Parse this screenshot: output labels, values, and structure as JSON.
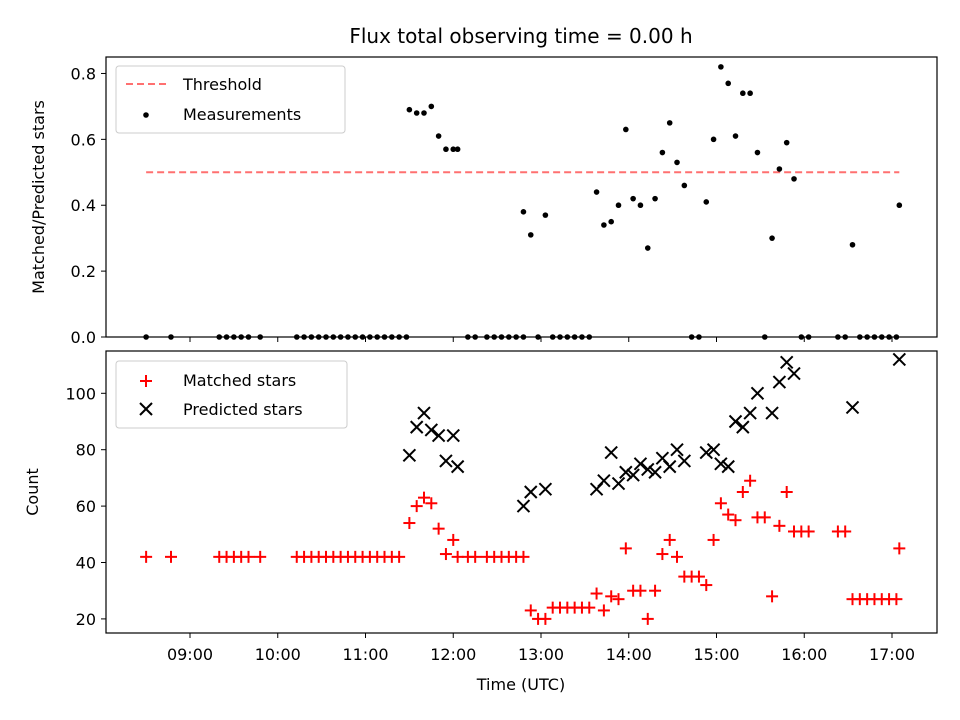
{
  "chart_data": {
    "type": "scatter",
    "title": "Flux total observing time = 0.00 h",
    "xlabel": "Time (UTC)",
    "x_ticks": [
      "09:00",
      "10:00",
      "11:00",
      "12:00",
      "13:00",
      "14:00",
      "15:00",
      "16:00",
      "17:00"
    ],
    "top_panel": {
      "ylabel": "Matched/Predicted stars",
      "ylim": [
        0,
        0.85
      ],
      "y_ticks": [
        "0.0",
        "0.2",
        "0.4",
        "0.6",
        "0.8"
      ],
      "legend": {
        "position": "top-left",
        "entries": [
          "Threshold",
          "Measurements"
        ]
      },
      "threshold": {
        "name": "Threshold",
        "value": 0.5,
        "x_start": "08:30",
        "x_end": "17:05",
        "color": "#ff7070",
        "style": "dashed"
      },
      "measurements": {
        "name": "Measurements",
        "color": "#000000",
        "points": [
          [
            "08:30",
            0.0
          ],
          [
            "08:47",
            0.0
          ],
          [
            "09:20",
            0.0
          ],
          [
            "09:25",
            0.0
          ],
          [
            "09:30",
            0.0
          ],
          [
            "09:35",
            0.0
          ],
          [
            "09:40",
            0.0
          ],
          [
            "09:48",
            0.0
          ],
          [
            "10:13",
            0.0
          ],
          [
            "10:18",
            0.0
          ],
          [
            "10:23",
            0.0
          ],
          [
            "10:28",
            0.0
          ],
          [
            "10:33",
            0.0
          ],
          [
            "10:38",
            0.0
          ],
          [
            "10:43",
            0.0
          ],
          [
            "10:48",
            0.0
          ],
          [
            "10:53",
            0.0
          ],
          [
            "10:58",
            0.0
          ],
          [
            "11:03",
            0.0
          ],
          [
            "11:08",
            0.0
          ],
          [
            "11:13",
            0.0
          ],
          [
            "11:18",
            0.0
          ],
          [
            "11:23",
            0.0
          ],
          [
            "11:28",
            0.0
          ],
          [
            "11:30",
            0.69
          ],
          [
            "11:35",
            0.68
          ],
          [
            "11:40",
            0.68
          ],
          [
            "11:45",
            0.7
          ],
          [
            "11:50",
            0.61
          ],
          [
            "11:55",
            0.57
          ],
          [
            "12:00",
            0.57
          ],
          [
            "12:03",
            0.57
          ],
          [
            "12:10",
            0.0
          ],
          [
            "12:15",
            0.0
          ],
          [
            "12:23",
            0.0
          ],
          [
            "12:28",
            0.0
          ],
          [
            "12:33",
            0.0
          ],
          [
            "12:38",
            0.0
          ],
          [
            "12:43",
            0.0
          ],
          [
            "12:48",
            0.0
          ],
          [
            "12:48",
            0.38
          ],
          [
            "12:53",
            0.31
          ],
          [
            "12:58",
            0.0
          ],
          [
            "13:03",
            0.37
          ],
          [
            "13:08",
            0.0
          ],
          [
            "13:13",
            0.0
          ],
          [
            "13:18",
            0.0
          ],
          [
            "13:23",
            0.0
          ],
          [
            "13:28",
            0.0
          ],
          [
            "13:33",
            0.0
          ],
          [
            "13:38",
            0.44
          ],
          [
            "13:43",
            0.34
          ],
          [
            "13:48",
            0.35
          ],
          [
            "13:53",
            0.4
          ],
          [
            "13:58",
            0.63
          ],
          [
            "14:03",
            0.42
          ],
          [
            "14:08",
            0.4
          ],
          [
            "14:13",
            0.27
          ],
          [
            "14:18",
            0.42
          ],
          [
            "14:23",
            0.56
          ],
          [
            "14:28",
            0.65
          ],
          [
            "14:33",
            0.53
          ],
          [
            "14:38",
            0.46
          ],
          [
            "14:43",
            0.0
          ],
          [
            "14:48",
            0.0
          ],
          [
            "14:53",
            0.41
          ],
          [
            "14:58",
            0.6
          ],
          [
            "15:03",
            0.82
          ],
          [
            "15:08",
            0.77
          ],
          [
            "15:13",
            0.61
          ],
          [
            "15:18",
            0.74
          ],
          [
            "15:23",
            0.74
          ],
          [
            "15:28",
            0.56
          ],
          [
            "15:33",
            0.0
          ],
          [
            "15:38",
            0.3
          ],
          [
            "15:43",
            0.51
          ],
          [
            "15:48",
            0.59
          ],
          [
            "15:53",
            0.48
          ],
          [
            "15:58",
            0.0
          ],
          [
            "16:03",
            0.0
          ],
          [
            "16:23",
            0.0
          ],
          [
            "16:28",
            0.0
          ],
          [
            "16:33",
            0.28
          ],
          [
            "16:38",
            0.0
          ],
          [
            "16:43",
            0.0
          ],
          [
            "16:48",
            0.0
          ],
          [
            "16:53",
            0.0
          ],
          [
            "16:58",
            0.0
          ],
          [
            "17:03",
            0.0
          ],
          [
            "17:05",
            0.4
          ]
        ]
      }
    },
    "bottom_panel": {
      "ylabel": "Count",
      "ylim": [
        15,
        115
      ],
      "y_ticks": [
        "20",
        "40",
        "60",
        "80",
        "100"
      ],
      "legend": {
        "position": "top-left",
        "entries": [
          "Matched stars",
          "Predicted stars"
        ]
      },
      "series": [
        {
          "name": "Matched stars",
          "marker": "+",
          "color": "#ff0000",
          "points": [
            [
              "08:30",
              42
            ],
            [
              "08:47",
              42
            ],
            [
              "09:20",
              42
            ],
            [
              "09:25",
              42
            ],
            [
              "09:30",
              42
            ],
            [
              "09:35",
              42
            ],
            [
              "09:40",
              42
            ],
            [
              "09:48",
              42
            ],
            [
              "10:13",
              42
            ],
            [
              "10:18",
              42
            ],
            [
              "10:23",
              42
            ],
            [
              "10:28",
              42
            ],
            [
              "10:33",
              42
            ],
            [
              "10:38",
              42
            ],
            [
              "10:43",
              42
            ],
            [
              "10:48",
              42
            ],
            [
              "10:53",
              42
            ],
            [
              "10:58",
              42
            ],
            [
              "11:03",
              42
            ],
            [
              "11:08",
              42
            ],
            [
              "11:13",
              42
            ],
            [
              "11:18",
              42
            ],
            [
              "11:23",
              42
            ],
            [
              "11:30",
              54
            ],
            [
              "11:35",
              60
            ],
            [
              "11:40",
              63
            ],
            [
              "11:45",
              61
            ],
            [
              "11:50",
              52
            ],
            [
              "11:55",
              43
            ],
            [
              "12:00",
              48
            ],
            [
              "12:03",
              42
            ],
            [
              "12:10",
              42
            ],
            [
              "12:15",
              42
            ],
            [
              "12:23",
              42
            ],
            [
              "12:28",
              42
            ],
            [
              "12:33",
              42
            ],
            [
              "12:38",
              42
            ],
            [
              "12:43",
              42
            ],
            [
              "12:48",
              42
            ],
            [
              "12:53",
              23
            ],
            [
              "12:58",
              20
            ],
            [
              "13:03",
              20
            ],
            [
              "13:08",
              24
            ],
            [
              "13:13",
              24
            ],
            [
              "13:18",
              24
            ],
            [
              "13:23",
              24
            ],
            [
              "13:28",
              24
            ],
            [
              "13:33",
              24
            ],
            [
              "13:38",
              29
            ],
            [
              "13:43",
              23
            ],
            [
              "13:48",
              28
            ],
            [
              "13:53",
              27
            ],
            [
              "13:58",
              45
            ],
            [
              "14:03",
              30
            ],
            [
              "14:08",
              30
            ],
            [
              "14:13",
              20
            ],
            [
              "14:18",
              30
            ],
            [
              "14:23",
              43
            ],
            [
              "14:28",
              48
            ],
            [
              "14:33",
              42
            ],
            [
              "14:38",
              35
            ],
            [
              "14:43",
              35
            ],
            [
              "14:48",
              35
            ],
            [
              "14:53",
              32
            ],
            [
              "14:58",
              48
            ],
            [
              "15:03",
              61
            ],
            [
              "15:08",
              57
            ],
            [
              "15:13",
              55
            ],
            [
              "15:18",
              65
            ],
            [
              "15:23",
              69
            ],
            [
              "15:28",
              56
            ],
            [
              "15:33",
              56
            ],
            [
              "15:38",
              28
            ],
            [
              "15:43",
              53
            ],
            [
              "15:48",
              65
            ],
            [
              "15:53",
              51
            ],
            [
              "15:58",
              51
            ],
            [
              "16:03",
              51
            ],
            [
              "16:23",
              51
            ],
            [
              "16:28",
              51
            ],
            [
              "16:33",
              27
            ],
            [
              "16:38",
              27
            ],
            [
              "16:43",
              27
            ],
            [
              "16:48",
              27
            ],
            [
              "16:53",
              27
            ],
            [
              "16:58",
              27
            ],
            [
              "17:03",
              27
            ],
            [
              "17:05",
              45
            ]
          ]
        },
        {
          "name": "Predicted stars",
          "marker": "x",
          "color": "#000000",
          "points": [
            [
              "11:30",
              78
            ],
            [
              "11:35",
              88
            ],
            [
              "11:40",
              93
            ],
            [
              "11:45",
              87
            ],
            [
              "11:50",
              85
            ],
            [
              "11:55",
              76
            ],
            [
              "12:00",
              85
            ],
            [
              "12:03",
              74
            ],
            [
              "12:48",
              60
            ],
            [
              "12:53",
              65
            ],
            [
              "13:03",
              66
            ],
            [
              "13:38",
              66
            ],
            [
              "13:43",
              69
            ],
            [
              "13:48",
              79
            ],
            [
              "13:53",
              68
            ],
            [
              "13:58",
              72
            ],
            [
              "14:03",
              71
            ],
            [
              "14:08",
              75
            ],
            [
              "14:13",
              73
            ],
            [
              "14:18",
              72
            ],
            [
              "14:23",
              77
            ],
            [
              "14:28",
              74
            ],
            [
              "14:33",
              80
            ],
            [
              "14:38",
              76
            ],
            [
              "14:53",
              79
            ],
            [
              "14:58",
              80
            ],
            [
              "15:03",
              75
            ],
            [
              "15:08",
              74
            ],
            [
              "15:13",
              90
            ],
            [
              "15:18",
              88
            ],
            [
              "15:23",
              93
            ],
            [
              "15:28",
              100
            ],
            [
              "15:38",
              93
            ],
            [
              "15:43",
              104
            ],
            [
              "15:48",
              111
            ],
            [
              "15:53",
              107
            ],
            [
              "16:33",
              95
            ],
            [
              "17:05",
              112
            ]
          ]
        }
      ]
    }
  }
}
